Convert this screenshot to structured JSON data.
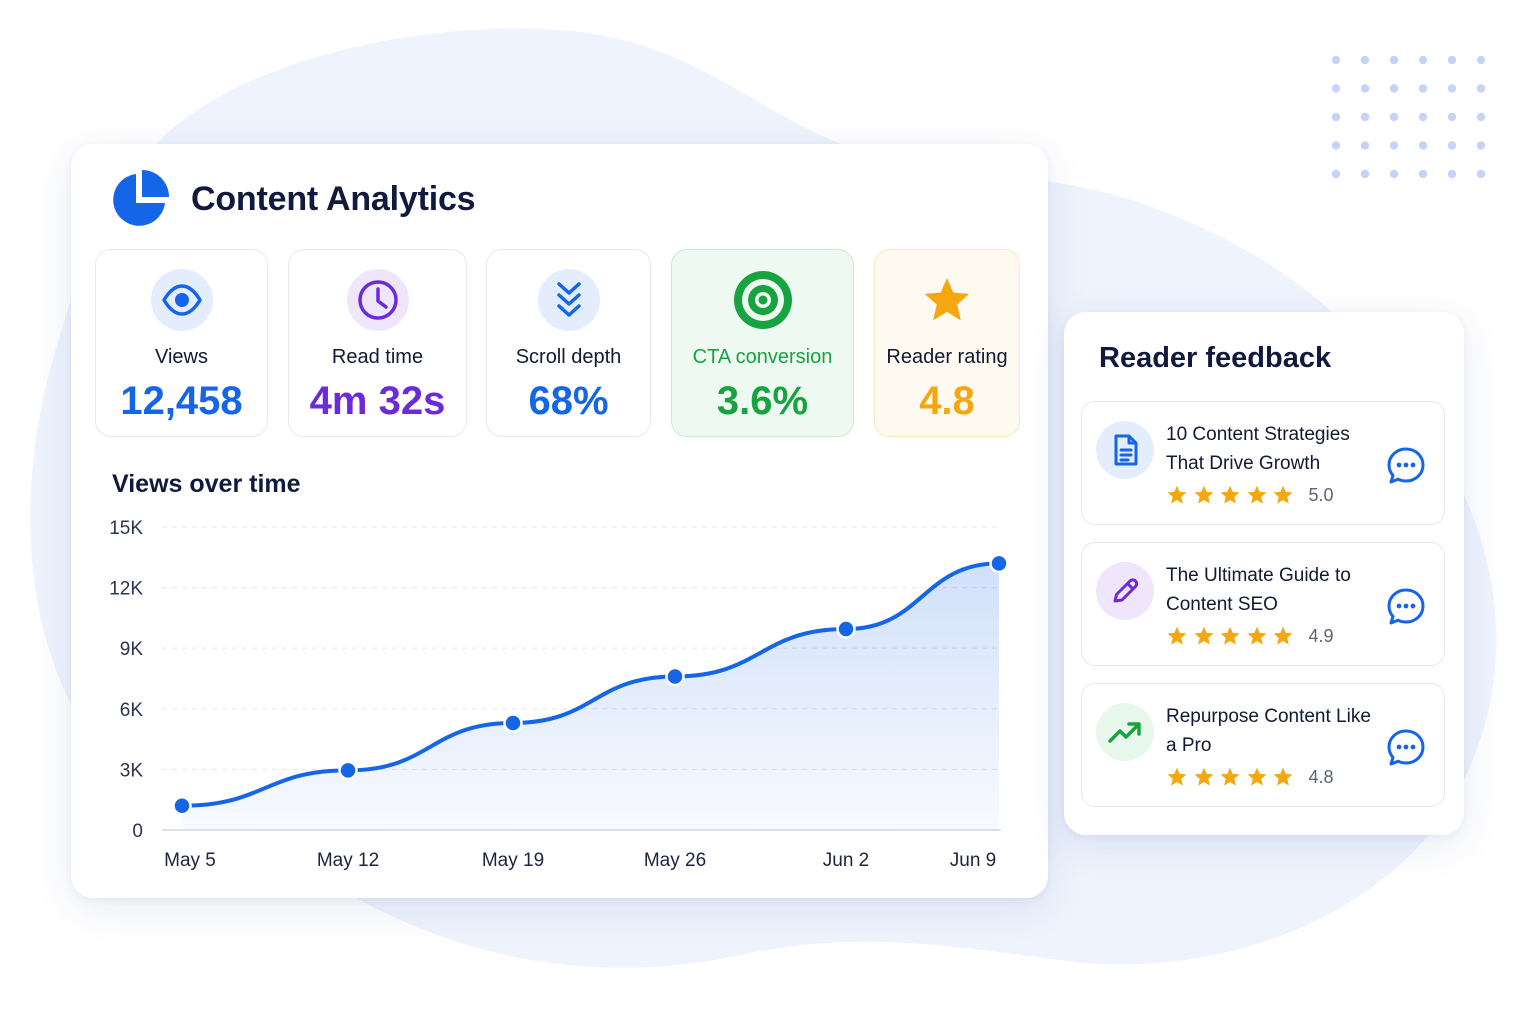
{
  "header": {
    "title": "Content Analytics",
    "icon": "pie-chart-icon"
  },
  "metrics": [
    {
      "label": "Views",
      "value": "12,458",
      "icon": "eye-icon",
      "color": "#1565e8",
      "icon_bg": "#e3edfd"
    },
    {
      "label": "Read time",
      "value": "4m 32s",
      "icon": "clock-icon",
      "color": "#6c2bd9",
      "icon_bg": "#efe6fb"
    },
    {
      "label": "Scroll depth",
      "value": "68%",
      "icon": "double-chevron-down-icon",
      "color": "#1565e8",
      "icon_bg": "#e3edfd"
    },
    {
      "label": "CTA conversion",
      "value": "3.6%",
      "icon": "target-icon",
      "color": "#17a340",
      "icon_bg": "#eefaf1"
    },
    {
      "label": "Reader rating",
      "value": "4.8",
      "icon": "star-icon",
      "color": "#f5a70f",
      "icon_bg": "#fff9ee"
    }
  ],
  "chart": {
    "title": "Views over time"
  },
  "chart_data": {
    "type": "area",
    "title": "Views over time",
    "x": [
      "May 5",
      "May 12",
      "May 19",
      "May 26",
      "Jun 2",
      "Jun 9"
    ],
    "y_ticks": [
      "0",
      "3K",
      "6K",
      "9K",
      "12K",
      "15K"
    ],
    "ylim": [
      0,
      15000
    ],
    "series": [
      {
        "values": [
          1200,
          2950,
          5300,
          7600,
          9950,
          13200
        ]
      }
    ],
    "grid": true,
    "color": "#1565e8"
  },
  "feedback": {
    "title": "Reader feedback",
    "items": [
      {
        "title": "10 Content Strategies That Drive Growth",
        "rating": "5.0",
        "stars": 5,
        "icon": "document-icon",
        "icon_color": "#1565e8",
        "icon_bg": "#e3edfd"
      },
      {
        "title": "The Ultimate Guide to Content SEO",
        "rating": "4.9",
        "stars": 5,
        "icon": "pencil-icon",
        "icon_color": "#6c2bd9",
        "icon_bg": "#efe6fb"
      },
      {
        "title": "Repurpose Content Like a Pro",
        "rating": "4.8",
        "stars": 5,
        "icon": "trending-up-icon",
        "icon_color": "#17a340",
        "icon_bg": "#e8f7ec"
      }
    ]
  }
}
